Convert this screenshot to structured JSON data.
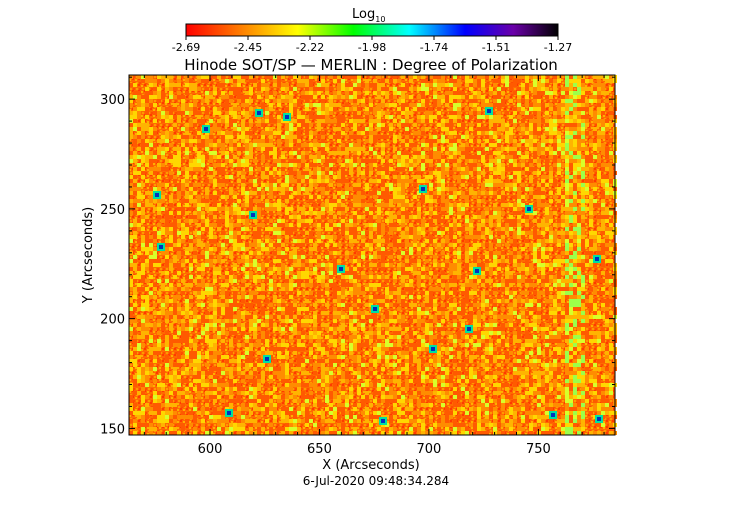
{
  "colorbar": {
    "label": "Log",
    "label_sub": "10",
    "ticks": [
      "-2.69",
      "-2.45",
      "-2.22",
      "-1.98",
      "-1.74",
      "-1.51",
      "-1.27"
    ],
    "range": [
      -2.69,
      -1.27
    ],
    "colors": [
      "#ff0000",
      "#ff8000",
      "#ffff00",
      "#00ff00",
      "#00ffff",
      "#0000ff",
      "#6a00a8",
      "#000000"
    ]
  },
  "chart_data": {
    "type": "heatmap",
    "title": "Hinode SOT/SP — MERLIN : Degree of Polarization",
    "xlabel": "X (Arcseconds)",
    "ylabel": "Y (Arcseconds)",
    "xlim": [
      563,
      785
    ],
    "ylim": [
      147,
      311
    ],
    "xticks": [
      600,
      650,
      700,
      750
    ],
    "yticks": [
      150,
      200,
      250,
      300
    ],
    "xtick_labels": [
      "600",
      "650",
      "700",
      "750"
    ],
    "ytick_labels": [
      "150",
      "200",
      "250",
      "300"
    ],
    "value_range": [
      -2.69,
      -1.27
    ],
    "grid": false,
    "timestamp": "6-Jul-2020 09:48:34.284"
  }
}
